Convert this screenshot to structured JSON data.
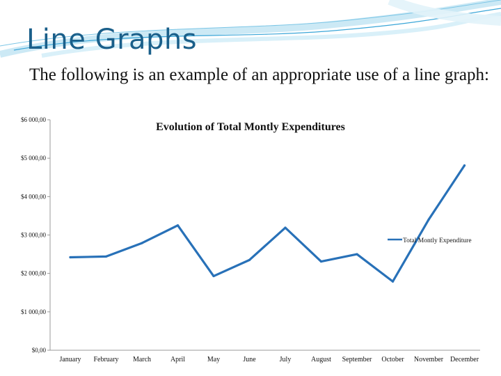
{
  "slide": {
    "title": "Line Graphs",
    "body": "The following is an example of an appropriate use of a line graph:"
  },
  "colors": {
    "title": "#1a5f8a",
    "series": "#2871b8",
    "axis": "#9a9a9a",
    "decor": "#3aa6d8"
  },
  "chart_data": {
    "type": "line",
    "title": "Evolution of Total Montly Expenditures",
    "xlabel": "",
    "ylabel": "",
    "grid": false,
    "legend_position": "right",
    "categories": [
      "January",
      "February",
      "March",
      "April",
      "May",
      "June",
      "July",
      "August",
      "September",
      "October",
      "November",
      "December"
    ],
    "y_ticks": [
      0,
      1000,
      2000,
      3000,
      4000,
      5000,
      6000
    ],
    "y_tick_labels": [
      "$0,00",
      "$1 000,00",
      "$2 000,00",
      "$3 000,00",
      "$4 000,00",
      "$5 000,00",
      "$6 000,00"
    ],
    "ylim": [
      0,
      6000
    ],
    "series": [
      {
        "name": "Total Montly Expenditure",
        "values": [
          2420,
          2440,
          2790,
          3250,
          1930,
          2350,
          3190,
          2310,
          2500,
          1790,
          3400,
          4810
        ]
      }
    ]
  }
}
